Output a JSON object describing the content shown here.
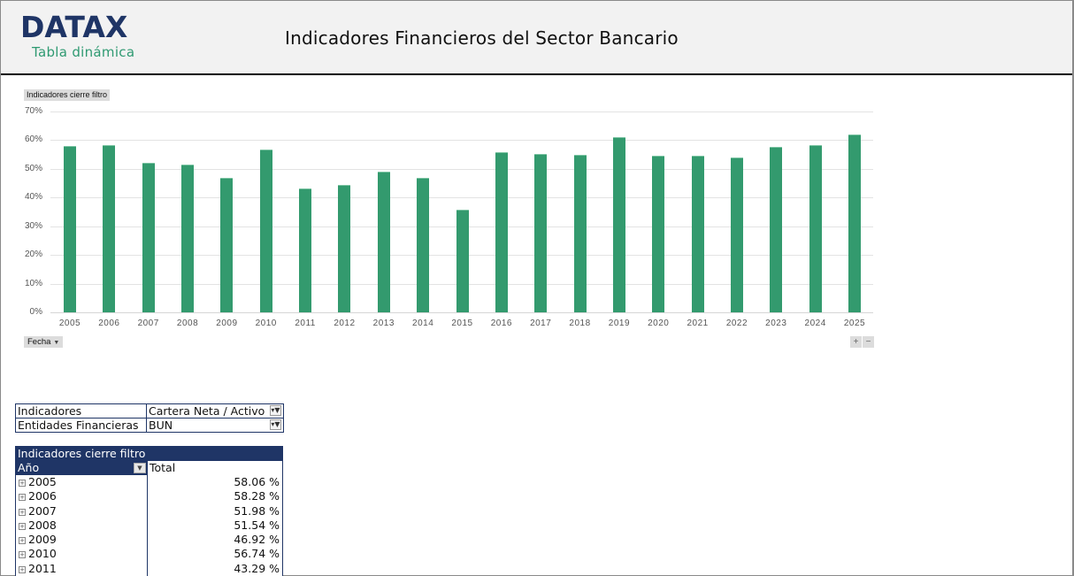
{
  "header": {
    "logo": "DATAX",
    "logo_subtitle": "Tabla dinámica",
    "title": "Indicadores Financieros del Sector Bancario"
  },
  "chart_controls": {
    "value_field_button": "Indicadores cierre filtro",
    "axis_field_button": "Fecha",
    "zoom_in": "+",
    "zoom_out": "−"
  },
  "colors": {
    "bar": "#339a6e",
    "brand_navy": "#1f3566",
    "brand_green": "#2f9a72"
  },
  "chart_data": {
    "type": "bar",
    "title": "",
    "xlabel": "",
    "ylabel": "",
    "ylim": [
      0,
      70
    ],
    "yticks": [
      "0%",
      "10%",
      "20%",
      "30%",
      "40%",
      "50%",
      "60%",
      "70%"
    ],
    "grid": true,
    "legend": "none",
    "categories": [
      "2005",
      "2006",
      "2007",
      "2008",
      "2009",
      "2010",
      "2011",
      "2012",
      "2013",
      "2014",
      "2015",
      "2016",
      "2017",
      "2018",
      "2019",
      "2020",
      "2021",
      "2022",
      "2023",
      "2024",
      "2025"
    ],
    "series": [
      {
        "name": "Indicadores cierre filtro",
        "values": [
          58.06,
          58.28,
          51.98,
          51.54,
          46.92,
          56.74,
          43.29,
          44.4,
          49.1,
          47.0,
          35.9,
          55.7,
          55.2,
          54.8,
          61.1,
          54.5,
          54.5,
          53.9,
          57.8,
          58.2,
          61.9
        ]
      }
    ]
  },
  "filters": [
    {
      "label": "Indicadores",
      "value": "Cartera Neta / Activo"
    },
    {
      "label": "Entidades Financieras",
      "value": "BUN"
    }
  ],
  "pivot": {
    "title": "Indicadores cierre filtro",
    "col_row_header": "Año",
    "col_value_header": "Total",
    "rows": [
      {
        "year": "2005",
        "total": "58.06 %"
      },
      {
        "year": "2006",
        "total": "58.28 %"
      },
      {
        "year": "2007",
        "total": "51.98 %"
      },
      {
        "year": "2008",
        "total": "51.54 %"
      },
      {
        "year": "2009",
        "total": "46.92 %"
      },
      {
        "year": "2010",
        "total": "56.74 %"
      },
      {
        "year": "2011",
        "total": "43.29 %"
      }
    ]
  }
}
